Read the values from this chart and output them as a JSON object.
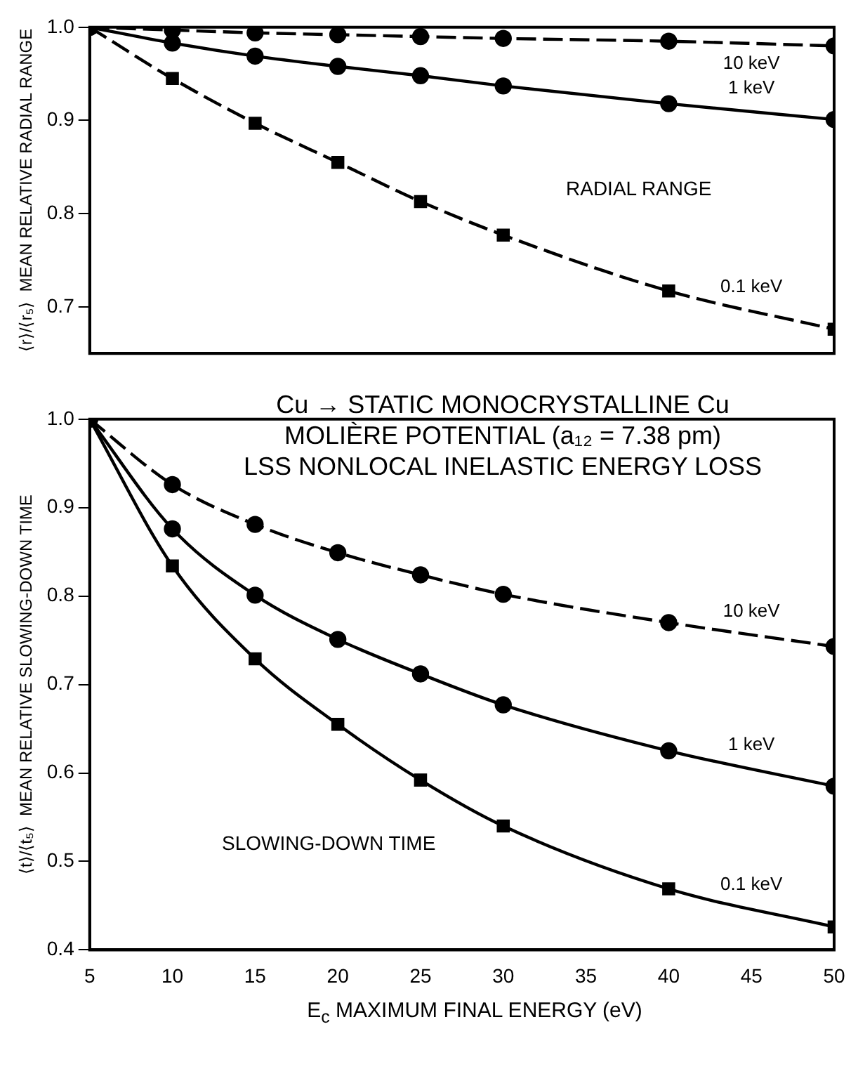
{
  "chart_data": [
    {
      "type": "line",
      "ylabel": "⟨r⟩/⟨r₅⟩  MEAN RELATIVE RADIAL RANGE",
      "x": [
        5,
        10,
        15,
        20,
        25,
        30,
        40,
        50
      ],
      "xlim": [
        5,
        50
      ],
      "xticks": [
        5,
        10,
        15,
        20,
        25,
        30,
        35,
        40,
        45,
        50
      ],
      "ylim": [
        0.65,
        1.0
      ],
      "yticks": [
        0.7,
        0.8,
        0.9,
        {
          "value": 1,
          "label": "1.0"
        }
      ],
      "tick_labels": "y",
      "annotations": [
        "RADIAL RANGE"
      ],
      "series": [
        {
          "name": "10 keV",
          "color": "#000000",
          "marker": "circle",
          "line_style": "dashed",
          "values": [
            1.0,
            0.997,
            0.994,
            0.992,
            0.99,
            0.988,
            0.985,
            0.98
          ]
        },
        {
          "name": "1 keV",
          "color": "#000000",
          "marker": "circle",
          "line_style": "solid",
          "values": [
            1.0,
            0.983,
            0.969,
            0.958,
            0.948,
            0.937,
            0.918,
            0.901
          ]
        },
        {
          "name": "0.1 keV",
          "color": "#000000",
          "marker": "square",
          "line_style": "dashed",
          "values": [
            1.0,
            0.945,
            0.897,
            0.855,
            0.813,
            0.777,
            0.717,
            0.676
          ]
        }
      ]
    },
    {
      "type": "line",
      "title": "Cu → STATIC MONOCRYSTALLINE Cu",
      "ylabel": "⟨t⟩/⟨t₅⟩  MEAN RELATIVE SLOWING-DOWN TIME",
      "xlabel": "E$_{c}$  MAXIMUM FINAL ENERGY (eV)",
      "x": [
        5,
        10,
        15,
        20,
        25,
        30,
        40,
        50
      ],
      "xlim": [
        5,
        50
      ],
      "xticks": [
        5,
        10,
        15,
        20,
        25,
        30,
        35,
        40,
        45,
        50
      ],
      "ylim": [
        0.4,
        1.0
      ],
      "yticks": [
        0.4,
        0.5,
        0.6,
        0.7,
        0.8,
        0.9,
        {
          "value": 1,
          "label": "1.0"
        }
      ],
      "annotations": [
        "MOLIÈRE POTENTIAL (a₁₂ = 7.38 pm)",
        "LSS NONLOCAL INELASTIC ENERGY LOSS",
        "SLOWING-DOWN TIME"
      ],
      "series": [
        {
          "name": "10 keV",
          "color": "#000000",
          "marker": "circle",
          "line_style": "dashed",
          "values": [
            1.0,
            0.926,
            0.881,
            0.849,
            0.824,
            0.802,
            0.77,
            0.743
          ]
        },
        {
          "name": "1 keV",
          "color": "#000000",
          "marker": "circle",
          "line_style": "solid",
          "values": [
            1.0,
            0.876,
            0.801,
            0.751,
            0.712,
            0.677,
            0.625,
            0.585
          ]
        },
        {
          "name": "0.1 keV",
          "color": "#000000",
          "marker": "square",
          "line_style": "solid",
          "values": [
            1.0,
            0.834,
            0.729,
            0.655,
            0.592,
            0.54,
            0.469,
            0.426
          ]
        }
      ]
    }
  ]
}
